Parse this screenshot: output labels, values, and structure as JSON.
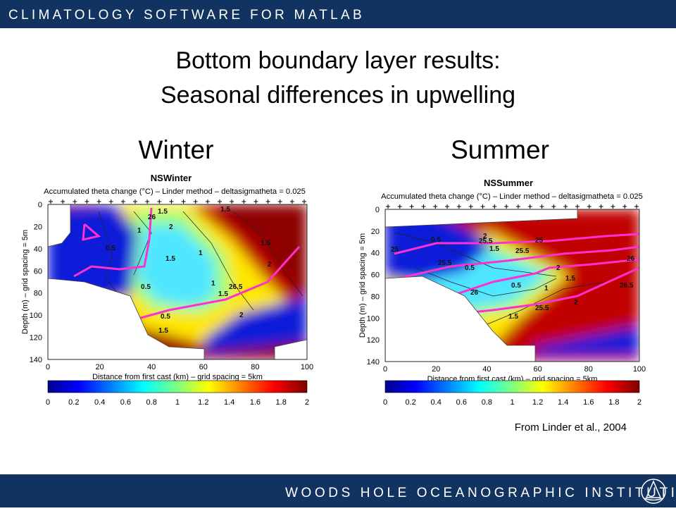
{
  "header": {
    "title": "CLIMATOLOGY SOFTWARE FOR MATLAB"
  },
  "slide": {
    "title_line1": "Bottom boundary layer results:",
    "title_line2": "Seasonal differences in upwelling",
    "citation": "From Linder et al., 2004"
  },
  "panels": [
    {
      "heading": "Winter",
      "plot_title": "NSWinter",
      "plot_subtitle": "Accumulated theta change (°C) – Linder method – deltasigmatheta = 0.025",
      "y_label": "Depth (m) – grid spacing = 5m",
      "x_label": "Distance from first cast (km) – grid spacing = 5km",
      "y_ticks": [
        "0",
        "20",
        "40",
        "60",
        "80",
        "100",
        "120",
        "140"
      ],
      "x_ticks": [
        "0",
        "20",
        "40",
        "60",
        "80",
        "100"
      ],
      "colorbar_ticks": [
        "0",
        "0.2",
        "0.4",
        "0.6",
        "0.8",
        "1",
        "1.2",
        "1.4",
        "1.6",
        "1.8",
        "2"
      ],
      "contour_labels": [
        "1.5",
        "2",
        "1.5",
        "1.5",
        "0.5",
        "1",
        "1",
        "26",
        "1",
        "1.5",
        "2",
        "0.5",
        "26.5",
        "2",
        "1.5",
        "0.5",
        "1.5"
      ]
    },
    {
      "heading": "Summer",
      "plot_title": "NSSummer",
      "plot_subtitle": "Accumulated theta change (°C) – Linder method – deltasigmatheta = 0.025",
      "y_label": "Depth (m) – grid spacing = 5m",
      "x_label": "Distance from first cast (km) – grid spacing = 5km",
      "y_ticks": [
        "0",
        "20",
        "40",
        "60",
        "80",
        "100",
        "120",
        "140"
      ],
      "x_ticks": [
        "0",
        "20",
        "40",
        "60",
        "80",
        "100"
      ],
      "colorbar_ticks": [
        "0",
        "0.2",
        "0.4",
        "0.6",
        "0.8",
        "1",
        "1.2",
        "1.4",
        "1.6",
        "1.8",
        "2"
      ],
      "contour_labels": [
        "25",
        "25.5",
        "2",
        "0.5",
        "25",
        "1.5",
        "25.5",
        "25.5",
        "0.5",
        "26",
        "2",
        "1.5",
        "26.5",
        "1",
        "0.5",
        "25.5",
        "2",
        "1.5",
        "26"
      ]
    }
  ],
  "footer": {
    "institution": "WOODS HOLE OCEANOGRAPHIC INSTITUTION"
  }
}
